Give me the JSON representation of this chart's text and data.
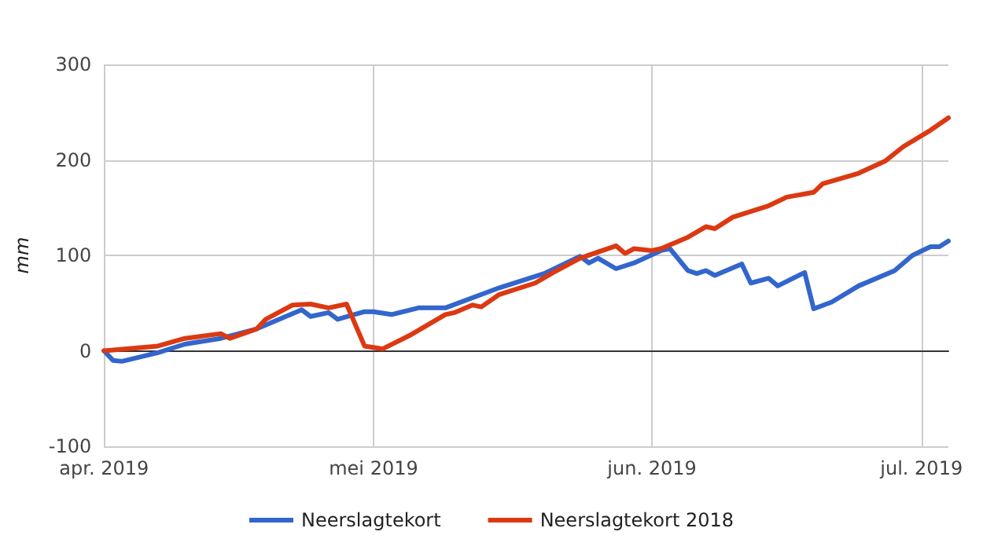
{
  "chart_data": {
    "type": "line",
    "ylabel": "mm",
    "xlim": [
      "2019-04-01",
      "2019-07-04"
    ],
    "ylim": [
      -100,
      300
    ],
    "yticks": [
      -100,
      0,
      100,
      200,
      300
    ],
    "xticks": [
      {
        "value": "2019-04-01",
        "label": "apr. 2019"
      },
      {
        "value": "2019-05-01",
        "label": "mei 2019"
      },
      {
        "value": "2019-06-01",
        "label": "jun. 2019"
      },
      {
        "value": "2019-07-01",
        "label": "jul. 2019"
      }
    ],
    "grid": true,
    "legend": "bottom",
    "marker": "none",
    "line_style": "solid",
    "series": [
      {
        "name": "Neerslagtekort",
        "color": "#3366cc",
        "x": [
          "2019-04-01",
          "2019-04-02",
          "2019-04-03",
          "2019-04-07",
          "2019-04-10",
          "2019-04-14",
          "2019-04-18",
          "2019-04-23",
          "2019-04-24",
          "2019-04-26",
          "2019-04-27",
          "2019-04-30",
          "2019-05-01",
          "2019-05-03",
          "2019-05-06",
          "2019-05-09",
          "2019-05-15",
          "2019-05-20",
          "2019-05-24",
          "2019-05-25",
          "2019-05-26",
          "2019-05-28",
          "2019-05-30",
          "2019-06-02",
          "2019-06-03",
          "2019-06-05",
          "2019-06-06",
          "2019-06-07",
          "2019-06-08",
          "2019-06-11",
          "2019-06-12",
          "2019-06-14",
          "2019-06-15",
          "2019-06-18",
          "2019-06-19",
          "2019-06-21",
          "2019-06-24",
          "2019-06-28",
          "2019-06-30",
          "2019-07-02",
          "2019-07-03",
          "2019-07-04"
        ],
        "values": [
          0,
          -10,
          -11,
          -2,
          7,
          13,
          23,
          43,
          36,
          40,
          33,
          41,
          41,
          38,
          45,
          45,
          66,
          81,
          99,
          92,
          97,
          86,
          92,
          105,
          107,
          84,
          81,
          84,
          79,
          91,
          71,
          76,
          68,
          82,
          44,
          51,
          68,
          84,
          100,
          109,
          109,
          115
        ]
      },
      {
        "name": "Neerslagtekort 2018",
        "color": "#dc3912",
        "x": [
          "2019-04-01",
          "2019-04-07",
          "2019-04-10",
          "2019-04-14",
          "2019-04-15",
          "2019-04-18",
          "2019-04-19",
          "2019-04-22",
          "2019-04-24",
          "2019-04-26",
          "2019-04-28",
          "2019-04-30",
          "2019-05-02",
          "2019-05-05",
          "2019-05-09",
          "2019-05-10",
          "2019-05-12",
          "2019-05-13",
          "2019-05-15",
          "2019-05-19",
          "2019-05-21",
          "2019-05-24",
          "2019-05-28",
          "2019-05-29",
          "2019-05-30",
          "2019-06-01",
          "2019-06-02",
          "2019-06-05",
          "2019-06-07",
          "2019-06-08",
          "2019-06-10",
          "2019-06-14",
          "2019-06-16",
          "2019-06-19",
          "2019-06-20",
          "2019-06-24",
          "2019-06-27",
          "2019-06-29",
          "2019-07-02",
          "2019-07-04"
        ],
        "values": [
          0,
          5,
          13,
          18,
          13,
          23,
          33,
          48,
          49,
          45,
          49,
          5,
          2,
          16,
          38,
          40,
          48,
          46,
          59,
          71,
          82,
          97,
          110,
          102,
          107,
          105,
          107,
          119,
          130,
          128,
          140,
          152,
          161,
          166,
          175,
          186,
          199,
          214,
          231,
          244
        ]
      }
    ]
  }
}
